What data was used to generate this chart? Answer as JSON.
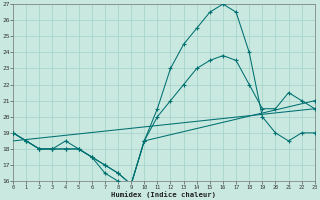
{
  "xlabel": "Humidex (Indice chaleur)",
  "bg_color": "#c8e8e0",
  "grid_color": "#a8d4cc",
  "line_color": "#007070",
  "xlim": [
    0,
    23
  ],
  "ylim": [
    16,
    27
  ],
  "xticks": [
    0,
    1,
    2,
    3,
    4,
    5,
    6,
    7,
    8,
    9,
    10,
    11,
    12,
    13,
    14,
    15,
    16,
    17,
    18,
    19,
    20,
    21,
    22,
    23
  ],
  "yticks": [
    16,
    17,
    18,
    19,
    20,
    21,
    22,
    23,
    24,
    25,
    26,
    27
  ],
  "line1_x": [
    0,
    1,
    2,
    3,
    4,
    5,
    6,
    7,
    8,
    9,
    10,
    11,
    12,
    13,
    14,
    15,
    16,
    17,
    18,
    19,
    20,
    21,
    22,
    23
  ],
  "line1_y": [
    19.0,
    18.5,
    18.0,
    18.0,
    18.5,
    18.0,
    17.5,
    17.0,
    16.5,
    15.8,
    18.5,
    20.5,
    23.0,
    24.5,
    25.5,
    26.5,
    27.0,
    26.5,
    24.0,
    20.0,
    19.0,
    18.5,
    19.0,
    19.0
  ],
  "line2_x": [
    0,
    1,
    2,
    3,
    4,
    5,
    6,
    7,
    8,
    9,
    10,
    11,
    12,
    13,
    14,
    15,
    16,
    17,
    18,
    19,
    20,
    21,
    22,
    23
  ],
  "line2_y": [
    19.0,
    18.5,
    18.0,
    18.0,
    18.0,
    18.0,
    17.5,
    17.0,
    16.5,
    15.8,
    18.5,
    20.0,
    21.0,
    22.0,
    23.0,
    23.5,
    23.8,
    23.5,
    22.0,
    20.5,
    20.5,
    21.5,
    21.0,
    20.5
  ],
  "line3_x": [
    0,
    1,
    2,
    3,
    4,
    5,
    6,
    7,
    8,
    9,
    10,
    23
  ],
  "line3_y": [
    19.0,
    18.5,
    18.0,
    18.0,
    18.0,
    18.0,
    17.5,
    16.5,
    16.0,
    15.8,
    18.5,
    21.0
  ],
  "line4_x": [
    0,
    23
  ],
  "line4_y": [
    18.5,
    20.5
  ]
}
